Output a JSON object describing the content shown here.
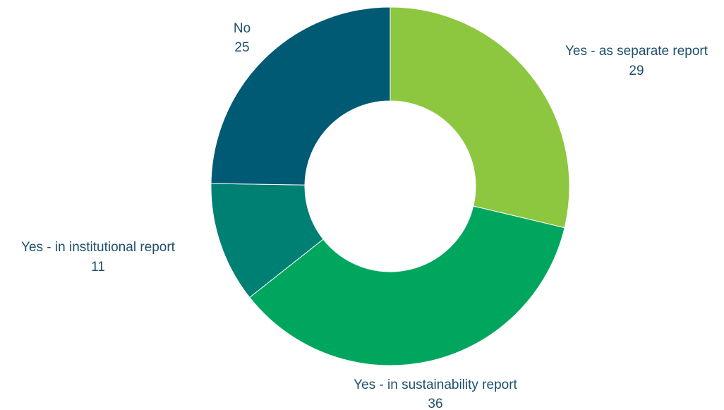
{
  "chart_data": {
    "type": "pie",
    "donut": true,
    "categories": [
      "Yes - as separate report",
      "Yes - in sustainability report",
      "Yes - in institutional report",
      "No"
    ],
    "values": [
      29,
      36,
      11,
      25
    ],
    "colors": [
      "#8dc63f",
      "#00a65e",
      "#007f73",
      "#005a73"
    ],
    "value_labels": [
      "29",
      "36",
      "11",
      "25"
    ],
    "label_color": "#1e4f6b",
    "legend": "none"
  }
}
